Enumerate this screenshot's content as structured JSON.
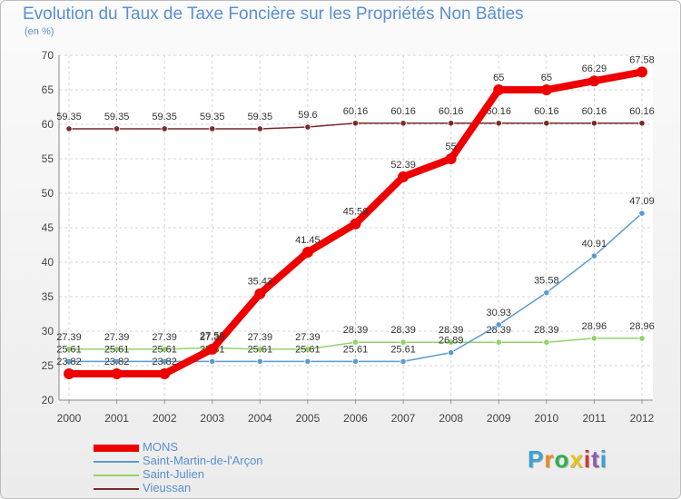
{
  "title": "Evolution du Taux de Taxe Foncière sur les Propriétés Non Bâties",
  "unit_label": "(en %)",
  "logo_text": "Proxiti",
  "logo_colors": [
    "#3aa0d8",
    "#ef8a1c",
    "#2db14a",
    "#e8c21a",
    "#d3343a",
    "#8c5bb0",
    "#3aa0d8"
  ],
  "chart_data": {
    "type": "line",
    "x": [
      "2000",
      "2001",
      "2002",
      "2003",
      "2004",
      "2005",
      "2006",
      "2007",
      "2008",
      "2009",
      "2010",
      "2011",
      "2012"
    ],
    "ylim": [
      20,
      70
    ],
    "yticks": [
      "20",
      "25",
      "30",
      "35",
      "40",
      "45",
      "50",
      "55",
      "60",
      "65",
      "70"
    ],
    "grid": true,
    "legend_position": "bottom-left",
    "series": [
      {
        "name": "Vieussan",
        "color": "#7a2a2a",
        "values": [
          59.35,
          59.35,
          59.35,
          59.35,
          59.35,
          59.6,
          60.16,
          60.16,
          60.16,
          60.16,
          60.16,
          60.16,
          60.16
        ],
        "labels": [
          "59.35",
          "59.35",
          "59.35",
          "59.35",
          "59.35",
          "59.6",
          "60.16",
          "60.16",
          "60.16",
          "60.16",
          "60.16",
          "60.16",
          "60.16"
        ]
      },
      {
        "name": "Saint-Julien",
        "color": "#93d36a",
        "values": [
          27.39,
          27.39,
          27.39,
          27.58,
          27.39,
          27.39,
          28.39,
          28.39,
          28.39,
          28.39,
          28.39,
          28.96,
          28.96
        ],
        "labels": [
          "27.39",
          "27.39",
          "27.39",
          "27.58",
          "27.39",
          "27.39",
          "28.39",
          "28.39",
          "28.39",
          "28.39",
          "28.39",
          "28.96",
          "28.96"
        ]
      },
      {
        "name": "Saint-Martin-de-l'Arçon",
        "color": "#5b9bd0",
        "values": [
          25.61,
          25.61,
          25.61,
          25.61,
          25.61,
          25.61,
          25.61,
          25.61,
          26.89,
          30.93,
          35.58,
          40.91,
          47.09
        ],
        "labels": [
          "25.61",
          "25.61",
          "25.61",
          "25.61",
          "25.61",
          "25.61",
          "25.61",
          "25.61",
          "26.89",
          "30.93",
          "35.58",
          "40.91",
          "47.09"
        ]
      },
      {
        "name": "MONS",
        "color": "#ee0000",
        "values": [
          23.82,
          23.82,
          23.82,
          27.39,
          35.43,
          41.45,
          45.56,
          52.39,
          55,
          65,
          65,
          66.29,
          67.58
        ],
        "labels": [
          "23.82",
          "23.82",
          "23.82",
          "27.39",
          "35.43",
          "41.45",
          "45.56",
          "52.39",
          "55",
          "65",
          "65",
          "66.29",
          "67.58"
        ]
      }
    ],
    "legend": [
      "MONS",
      "Saint-Martin-de-l'Arçon",
      "Saint-Julien",
      "Vieussan"
    ]
  }
}
